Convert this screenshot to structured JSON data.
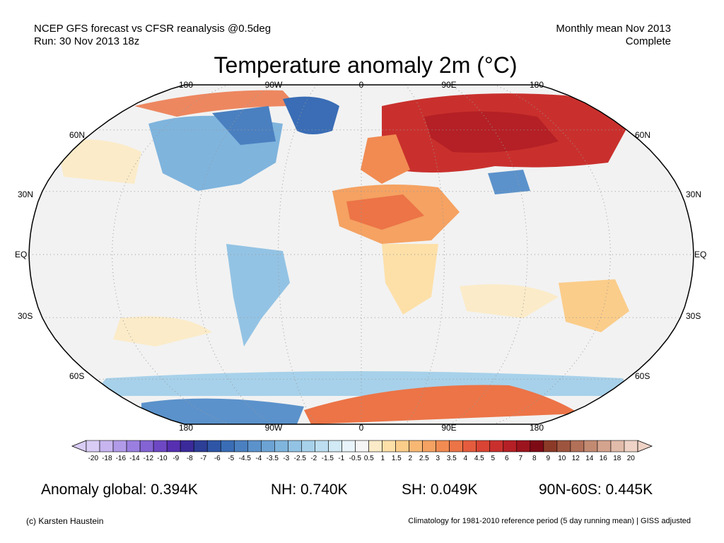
{
  "header": {
    "left_line1": "NCEP GFS forecast vs CFSR reanalysis @0.5deg",
    "left_line2": "Run: 30 Nov 2013 18z",
    "right_line1": "Monthly mean Nov 2013",
    "right_line2": "Complete"
  },
  "title": "Temperature anomaly 2m (°C)",
  "map": {
    "projection": "Robinson",
    "lon_labels_top": [
      "180",
      "90W",
      "0",
      "90E",
      "180"
    ],
    "lon_labels_bottom": [
      "180",
      "90W",
      "0",
      "90E",
      "180"
    ],
    "lat_labels_left": [
      "60N",
      "30N",
      "EQ",
      "30S",
      "60S"
    ],
    "lat_labels_right": [
      "60N",
      "30N",
      "EQ",
      "30S",
      "60S"
    ],
    "ocean_color": "#f2f2f2",
    "land_outline_color": "#000000"
  },
  "colorbar": {
    "ticks": [
      "-20",
      "-18",
      "-16",
      "-14",
      "-12",
      "-10",
      "-9",
      "-8",
      "-7",
      "-6",
      "-5",
      "-4.5",
      "-4",
      "-3.5",
      "-3",
      "-2.5",
      "-2",
      "-1.5",
      "-1",
      "-0.5",
      "0.5",
      "1",
      "1.5",
      "2",
      "2.5",
      "3",
      "3.5",
      "4",
      "4.5",
      "5",
      "6",
      "7",
      "8",
      "9",
      "10",
      "12",
      "14",
      "16",
      "18",
      "20"
    ],
    "colors": [
      "#d9ccf5",
      "#c7b5f0",
      "#b19ae8",
      "#9a7fe0",
      "#8464d4",
      "#6e48c4",
      "#5630b0",
      "#3b2a9a",
      "#2d3e96",
      "#2f56a6",
      "#3a6db5",
      "#4a80c0",
      "#5b92cb",
      "#6ca3d4",
      "#7fb4dd",
      "#93c3e4",
      "#a7d1ea",
      "#bcdef0",
      "#d2eaf6",
      "#e8f4fa",
      "#f5f5f5",
      "#fbebc8",
      "#fde0a8",
      "#fbcd8a",
      "#f8b874",
      "#f5a262",
      "#f18b52",
      "#ec7447",
      "#e45c3d",
      "#d94434",
      "#c9302d",
      "#b42025",
      "#9c141e",
      "#7e0a16",
      "#8c3a28",
      "#9e5540",
      "#b27058",
      "#c38a72",
      "#d4a38e",
      "#e2bcaa",
      "#eed3c6"
    ]
  },
  "stats": {
    "global": "Anomaly global: 0.394K",
    "nh": "NH: 0.740K",
    "sh": "SH: 0.049K",
    "arctic": "90N-60S: 0.445K"
  },
  "footer": {
    "left": "(c) Karsten Haustein",
    "right": "Climatology for 1981-2010 reference period (5 day running mean) | GISS adjusted"
  }
}
